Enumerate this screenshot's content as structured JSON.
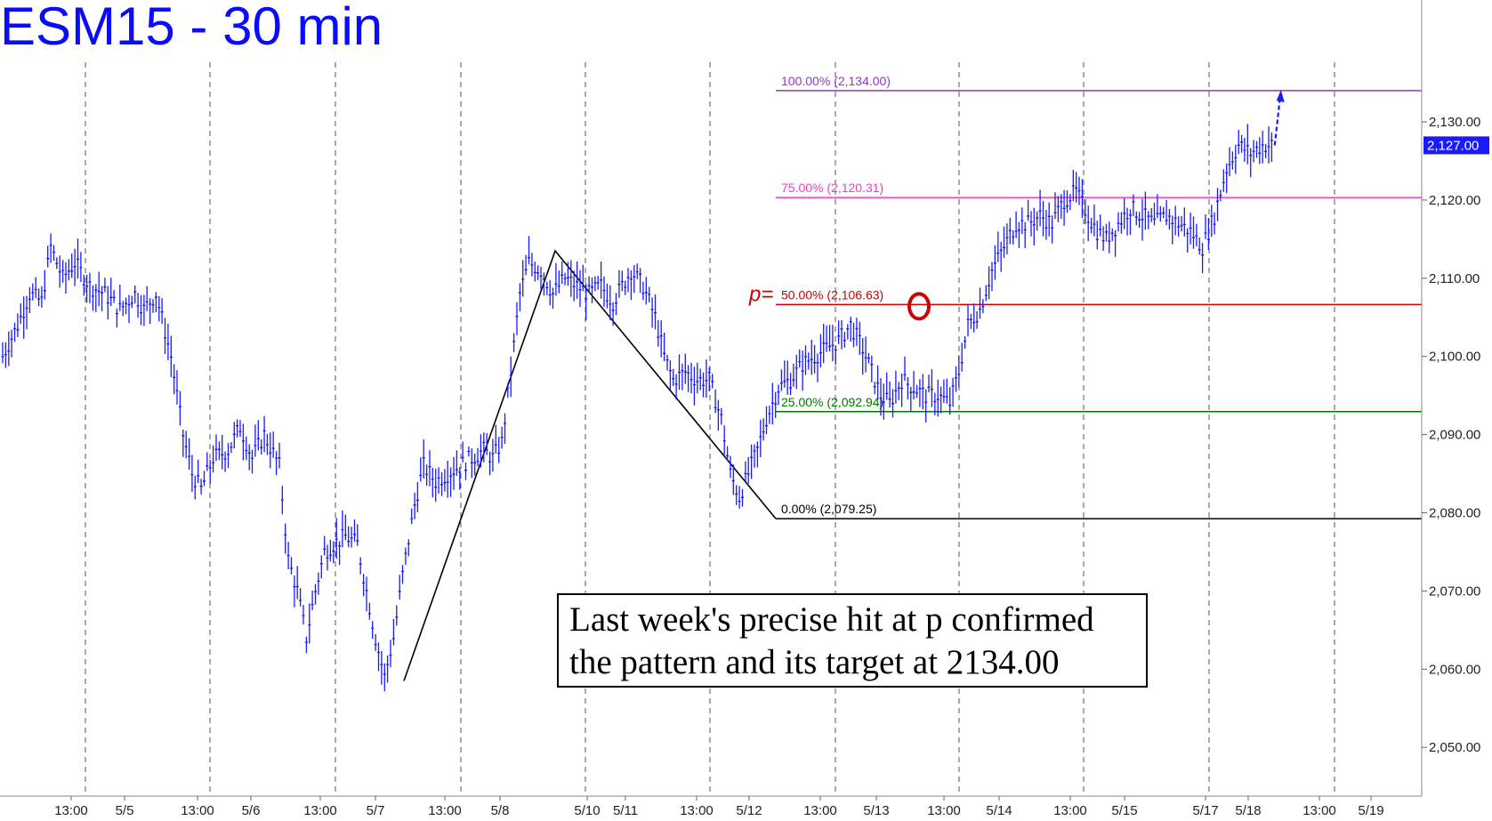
{
  "chart_data": {
    "type": "line",
    "title": "ESM15 - 30 min",
    "xlabel": "",
    "ylabel": "",
    "ylim": [
      2042,
      2146
    ],
    "grid": "vertical dashed session lines",
    "y_ticks": [
      "2,050.00",
      "2,060.00",
      "2,070.00",
      "2,080.00",
      "2,090.00",
      "2,100.00",
      "2,110.00",
      "2,120.00",
      "2,130.00"
    ],
    "y_tick_values": [
      2050,
      2060,
      2070,
      2080,
      2090,
      2100,
      2110,
      2120,
      2130
    ],
    "x_ticks": [
      "13:00",
      "5/5",
      "13:00",
      "5/6",
      "13:00",
      "5/7",
      "13:00",
      "5/8",
      "5/10",
      "5/11",
      "13:00",
      "5/12",
      "13:00",
      "5/13",
      "13:00",
      "5/14",
      "13:00",
      "5/15",
      "5/17",
      "5/18",
      "13:00",
      "5/19"
    ],
    "last_price_label": "2,127.00",
    "last_price": 2127.0,
    "colors": {
      "price": "#1a1aff",
      "fib100": "#9933cc",
      "fib75": "#ff33cc",
      "fib50": "#cc0000",
      "fib25": "#007700",
      "fib0": "#000000",
      "title": "#0a0aff"
    },
    "fib_levels": [
      {
        "label": "100.00% (2,134.00)",
        "value": 2134.0,
        "color_key": "fib100"
      },
      {
        "label": "75.00% (2,120.31)",
        "value": 2120.31,
        "color_key": "fib75"
      },
      {
        "label": "50.00% (2,106.63)",
        "value": 2106.63,
        "color_key": "fib50",
        "prefix": "p="
      },
      {
        "label": "25.00% (2,092.94)",
        "value": 2092.94,
        "color_key": "fib25"
      },
      {
        "label": "0.00% (2,079.25)",
        "value": 2079.25,
        "color_key": "fib0"
      }
    ],
    "pattern_lines_values": [
      2058.5,
      2113.5,
      2079.25
    ],
    "price_waypoints": [
      [
        0,
        2100
      ],
      [
        5,
        2104
      ],
      [
        9,
        2108
      ],
      [
        13,
        2107
      ],
      [
        16,
        2114
      ],
      [
        20,
        2110
      ],
      [
        24,
        2112
      ],
      [
        29,
        2109
      ],
      [
        34,
        2108
      ],
      [
        39,
        2106
      ],
      [
        44,
        2108
      ],
      [
        47,
        2106
      ],
      [
        51,
        2108
      ],
      [
        56,
        2100
      ],
      [
        60,
        2090
      ],
      [
        63,
        2085
      ],
      [
        66,
        2083
      ],
      [
        70,
        2087
      ],
      [
        75,
        2088
      ],
      [
        79,
        2091
      ],
      [
        83,
        2087
      ],
      [
        87,
        2090
      ],
      [
        92,
        2086
      ],
      [
        95,
        2074
      ],
      [
        98,
        2070
      ],
      [
        101,
        2064
      ],
      [
        104,
        2070
      ],
      [
        107,
        2075
      ],
      [
        110,
        2076
      ],
      [
        114,
        2077
      ],
      [
        118,
        2076
      ],
      [
        121,
        2070
      ],
      [
        124,
        2064
      ],
      [
        127,
        2059
      ],
      [
        130,
        2064
      ],
      [
        133,
        2072
      ],
      [
        137,
        2081
      ],
      [
        140,
        2086
      ],
      [
        144,
        2084
      ],
      [
        148,
        2085
      ],
      [
        152,
        2086
      ],
      [
        156,
        2087
      ],
      [
        160,
        2088
      ],
      [
        163,
        2087
      ],
      [
        166,
        2089
      ],
      [
        169,
        2098
      ],
      [
        172,
        2108
      ],
      [
        175,
        2112
      ],
      [
        179,
        2111
      ],
      [
        183,
        2108
      ],
      [
        187,
        2110
      ],
      [
        191,
        2109
      ],
      [
        195,
        2108
      ],
      [
        199,
        2109
      ],
      [
        203,
        2107
      ],
      [
        206,
        2109
      ],
      [
        209,
        2111
      ],
      [
        213,
        2109
      ],
      [
        217,
        2105
      ],
      [
        220,
        2100
      ],
      [
        223,
        2097
      ],
      [
        227,
        2098
      ],
      [
        231,
        2097
      ],
      [
        235,
        2097
      ],
      [
        239,
        2092
      ],
      [
        242,
        2085
      ],
      [
        245,
        2082
      ],
      [
        248,
        2085
      ],
      [
        251,
        2088
      ],
      [
        254,
        2092
      ],
      [
        258,
        2096
      ],
      [
        262,
        2097
      ],
      [
        266,
        2099
      ],
      [
        270,
        2100
      ],
      [
        274,
        2101
      ],
      [
        278,
        2102
      ],
      [
        282,
        2104
      ],
      [
        286,
        2101
      ],
      [
        289,
        2098
      ],
      [
        292,
        2095
      ],
      [
        295,
        2094
      ],
      [
        299,
        2097
      ],
      [
        303,
        2096
      ],
      [
        307,
        2095
      ],
      [
        311,
        2095
      ],
      [
        315,
        2094
      ],
      [
        318,
        2098
      ],
      [
        321,
        2104
      ],
      [
        325,
        2106
      ],
      [
        329,
        2111
      ],
      [
        333,
        2114
      ],
      [
        337,
        2117
      ],
      [
        341,
        2117
      ],
      [
        345,
        2118
      ],
      [
        349,
        2117
      ],
      [
        353,
        2120
      ],
      [
        357,
        2121
      ],
      [
        361,
        2118
      ],
      [
        364,
        2116
      ],
      [
        367,
        2115
      ],
      [
        371,
        2117
      ],
      [
        375,
        2119
      ],
      [
        379,
        2118
      ],
      [
        383,
        2117
      ],
      [
        387,
        2118
      ],
      [
        391,
        2117
      ],
      [
        395,
        2116
      ],
      [
        399,
        2114
      ],
      [
        403,
        2118
      ],
      [
        407,
        2124
      ],
      [
        411,
        2127
      ],
      [
        415,
        2126
      ],
      [
        419,
        2127
      ],
      [
        423,
        2127
      ]
    ]
  },
  "annotation": {
    "line1": "Last week's precise hit at p confirmed",
    "line2": "the pattern and its target at 2134.00"
  }
}
